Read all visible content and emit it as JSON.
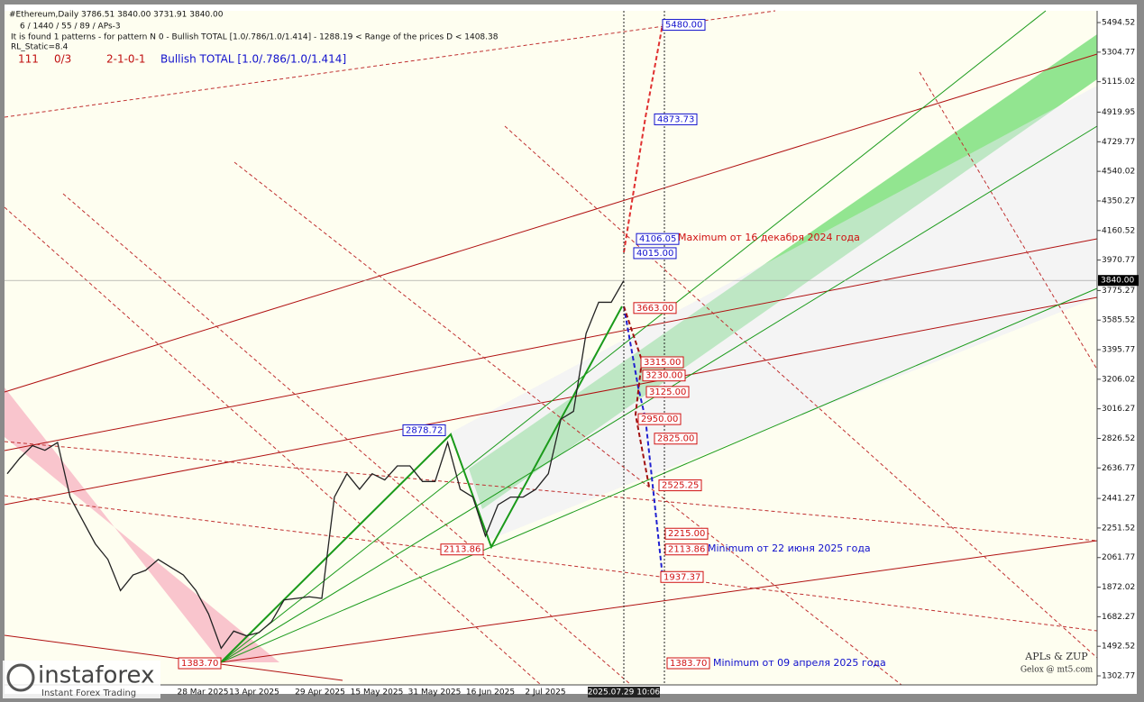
{
  "chart_data": {
    "type": "line",
    "title": "#Ethereum,Daily  3786.51 3840.00 3731.91 3840.00",
    "subtitle": "6 / 1440 / 55 / 89 / APs-3",
    "pattern_info": "It is found 1 patterns  -  for pattern N 0 - Bullish TOTAL [1.0/.786/1.0/1.414] - 1288.19 < Range of the prices D < 1408.38",
    "rl_static": "RL_Static=8.4",
    "status": [
      "111",
      "0/3",
      "2-1-0-1",
      "Bullish TOTAL [1.0/.786/1.0/1.414]"
    ],
    "color": "#222222",
    "values": [
      2600,
      2700,
      2780,
      2750,
      2800,
      2450,
      2300,
      2150,
      2050,
      1850,
      1950,
      1980,
      2050,
      2000,
      1950,
      1850,
      1700,
      1480,
      1590,
      1560,
      1580,
      1650,
      1790,
      1800,
      1810,
      1800,
      2450,
      2600,
      2500,
      2600,
      2560,
      2650,
      2650,
      2550,
      2550,
      2800,
      2500,
      2450,
      2200,
      2400,
      2450,
      2450,
      2500,
      2600,
      2950,
      3000,
      3500,
      3700,
      3700,
      3840
    ],
    "ylim": [
      1245,
      5570
    ],
    "yticks": [
      5494.52,
      5304.77,
      5115.02,
      4919.95,
      4729.77,
      4540.02,
      4350.27,
      4160.52,
      3970.77,
      3775.27,
      3585.52,
      3395.77,
      3206.02,
      3016.27,
      2826.52,
      2636.77,
      2441.27,
      2251.52,
      2061.77,
      1872.02,
      1682.27,
      1492.52,
      1302.77
    ],
    "current_price": {
      "value": 3840,
      "label": "3840.00"
    },
    "x_labels": [
      "28 Mar 2025",
      "13 Apr 2025",
      "29 Apr 2025",
      "15 May 2025",
      "31 May 2025",
      "16 Jun 2025",
      "2 Jul 2025",
      "2025.07.29 10:06"
    ],
    "price_labels": [
      {
        "value": 5480,
        "label": "5480.00",
        "color": "#1010cc"
      },
      {
        "value": 4873.73,
        "label": "4873.73",
        "color": "#1010cc"
      },
      {
        "value": 4106.05,
        "label": "4106.05",
        "color": "#1010cc"
      },
      {
        "value": 4015,
        "label": "4015.00",
        "color": "#1010cc"
      },
      {
        "value": 3663,
        "label": "3663.00",
        "color": "#d01010"
      },
      {
        "value": 3315,
        "label": "3315.00",
        "color": "#d01010"
      },
      {
        "value": 3230,
        "label": "3230.00",
        "color": "#d01010"
      },
      {
        "value": 3125,
        "label": "3125.00",
        "color": "#d01010"
      },
      {
        "value": 2950,
        "label": "2950.00",
        "color": "#d01010"
      },
      {
        "value": 2825,
        "label": "2825.00",
        "color": "#d01010"
      },
      {
        "value": 2525.25,
        "label": "2525.25",
        "color": "#d01010"
      },
      {
        "value": 2215,
        "label": "2215.00",
        "color": "#d01010"
      },
      {
        "value": 2113.86,
        "label": "2113.86",
        "color": "#d01010"
      },
      {
        "value": 2113.86,
        "label": "2113.86",
        "color": "#d01010"
      },
      {
        "value": 1383.7,
        "label": "1383.70",
        "color": "#d01010"
      },
      {
        "value": 1383.7,
        "label": "1383.70",
        "color": "#d01010"
      },
      {
        "value": 1937.37,
        "label": "1937.37",
        "color": "#d01010"
      },
      {
        "value": 2878.72,
        "label": "2878.72",
        "color": "#1010cc"
      }
    ],
    "annotations": [
      {
        "text": "Maximum от 16 декабря 2024 года",
        "color": "#d01010"
      },
      {
        "text": "Minimum от 22 июня 2025 года",
        "color": "#1010cc"
      },
      {
        "text": "Minimum от 09 апреля 2025 года",
        "color": "#1010cc"
      }
    ],
    "credits": [
      "APLs & ZUP",
      "Gelox @ mt5.com"
    ],
    "watermark": [
      "instaforex",
      "Instant Forex Trading"
    ]
  }
}
